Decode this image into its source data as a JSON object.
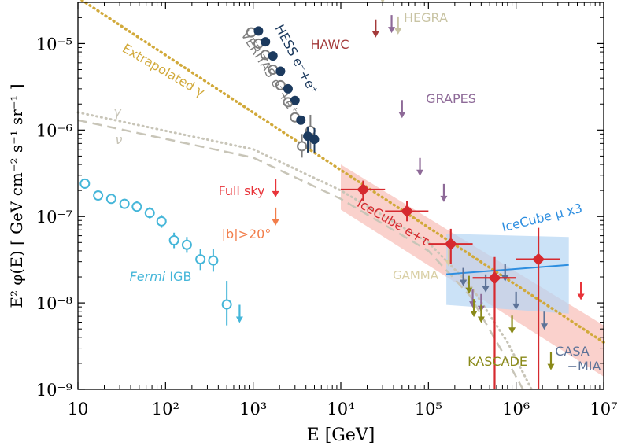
{
  "chart_data": {
    "type": "scatter",
    "xlabel": "E [GeV]",
    "ylabel": "E² φ(E)  [ GeV cm⁻² s⁻¹ sr⁻¹ ]",
    "xscale": "log",
    "yscale": "log",
    "xlim": [
      10,
      10000000
    ],
    "ylim": [
      1e-09,
      3e-05
    ],
    "x_ticks": [
      {
        "value": 10,
        "label": "10"
      },
      {
        "value": 100,
        "label": "10²"
      },
      {
        "value": 1000,
        "label": "10³"
      },
      {
        "value": 10000,
        "label": "10⁴"
      },
      {
        "value": 100000,
        "label": "10⁵"
      },
      {
        "value": 1000000,
        "label": "10⁶"
      },
      {
        "value": 10000000,
        "label": "10⁷"
      }
    ],
    "y_ticks": [
      {
        "value": 1e-09,
        "label": "10⁻⁹"
      },
      {
        "value": 1e-08,
        "label": "10⁻⁸"
      },
      {
        "value": 1e-07,
        "label": "10⁻⁷"
      },
      {
        "value": 1e-06,
        "label": "10⁻⁶"
      },
      {
        "value": 1e-05,
        "label": "10⁻⁵"
      }
    ],
    "colors": {
      "fermi": "#45b6d9",
      "hess": "#1c3a5e",
      "veritas": "#7f7f7f",
      "extrapolated": "#d1a93a",
      "gamma_nu": "#c8c5b8",
      "icecube": "#d62a2f",
      "icecube_band": "#f7b8b0",
      "icecube_mu": "#2d8ee0",
      "icecube_mu_band": "#b5d5f4",
      "hawc": "#a43a3a",
      "hegra": "#c9c4a4",
      "grapes": "#8e6a98",
      "fullsky": "#e8343a",
      "b20": "#f27d4a",
      "gamma_exp": "#d9cfa5",
      "kascade": "#8a8a19",
      "casa": "#5d7398"
    },
    "series": [
      {
        "name": "Fermi IGB",
        "points": [
          {
            "x": 12,
            "y": 2.4e-07,
            "err_lo": 2.1e-07,
            "err_hi": 2.7e-07
          },
          {
            "x": 17,
            "y": 1.75e-07,
            "err_lo": 1.55e-07,
            "err_hi": 1.98e-07
          },
          {
            "x": 24,
            "y": 1.6e-07,
            "err_lo": 1.42e-07,
            "err_hi": 1.8e-07
          },
          {
            "x": 34,
            "y": 1.4e-07,
            "err_lo": 1.23e-07,
            "err_hi": 1.6e-07
          },
          {
            "x": 47,
            "y": 1.3e-07,
            "err_lo": 1.13e-07,
            "err_hi": 1.5e-07
          },
          {
            "x": 66,
            "y": 1.1e-07,
            "err_lo": 9.5e-08,
            "err_hi": 1.28e-07
          },
          {
            "x": 90,
            "y": 8.8e-08,
            "err_lo": 7.4e-08,
            "err_hi": 1.04e-07
          },
          {
            "x": 125,
            "y": 5.3e-08,
            "err_lo": 4.3e-08,
            "err_hi": 6.5e-08
          },
          {
            "x": 175,
            "y": 4.7e-08,
            "err_lo": 3.8e-08,
            "err_hi": 5.8e-08
          },
          {
            "x": 250,
            "y": 3.2e-08,
            "err_lo": 2.4e-08,
            "err_hi": 4.2e-08
          },
          {
            "x": 350,
            "y": 3.1e-08,
            "err_lo": 2.3e-08,
            "err_hi": 4.2e-08
          },
          {
            "x": 500,
            "y": 9.6e-09,
            "err_lo": 5.5e-09,
            "err_hi": 1.8e-08
          }
        ],
        "upper_limits": [
          {
            "x": 700,
            "y": 6e-09
          }
        ]
      },
      {
        "name": "HESS e⁻+e⁺",
        "points": [
          {
            "x": 1150,
            "y": 1.4e-05
          },
          {
            "x": 1380,
            "y": 1.05e-05
          },
          {
            "x": 1680,
            "y": 7.2e-06
          },
          {
            "x": 2050,
            "y": 4.8e-06
          },
          {
            "x": 2500,
            "y": 3e-06
          },
          {
            "x": 3000,
            "y": 2.2e-06
          },
          {
            "x": 3500,
            "y": 1.3e-06
          },
          {
            "x": 4200,
            "y": 8.5e-07,
            "err_lo": 5.5e-07,
            "err_hi": 1.1e-06
          },
          {
            "x": 5000,
            "y": 7.8e-07,
            "err_lo": 5.5e-07,
            "err_hi": 1.05e-06
          }
        ]
      },
      {
        "name": "VERITAS e⁻+e⁺",
        "points": [
          {
            "x": 950,
            "y": 1.35e-05
          },
          {
            "x": 1150,
            "y": 1e-05
          },
          {
            "x": 1380,
            "y": 7.4e-06
          },
          {
            "x": 1680,
            "y": 5e-06
          },
          {
            "x": 2050,
            "y": 3.3e-06
          },
          {
            "x": 2500,
            "y": 2.1e-06
          },
          {
            "x": 3000,
            "y": 1.4e-06
          },
          {
            "x": 3600,
            "y": 6.5e-07,
            "err_lo": 4.8e-07,
            "err_hi": 9e-07
          },
          {
            "x": 4500,
            "y": 9.8e-07,
            "err_lo": 6e-07,
            "err_hi": 1.5e-06
          }
        ]
      },
      {
        "name": "IceCube e+τ",
        "points": [
          {
            "x": 18000,
            "y": 2.05e-07,
            "xerr_lo": 10000,
            "xerr_hi": 32000,
            "err_lo": 1.5e-07,
            "err_hi": 2.6e-07
          },
          {
            "x": 57000,
            "y": 1.15e-07,
            "xerr_lo": 32000,
            "xerr_hi": 100000,
            "err_lo": 8.8e-08,
            "err_hi": 1.5e-07
          },
          {
            "x": 180000,
            "y": 4.8e-08,
            "xerr_lo": 100000,
            "xerr_hi": 320000,
            "err_lo": 2.8e-08,
            "err_hi": 7.2e-08
          },
          {
            "x": 570000,
            "y": 1.95e-08,
            "xerr_lo": 320000,
            "xerr_hi": 1000000,
            "err_lo": 1e-09,
            "err_hi": 3.4e-08
          },
          {
            "x": 1800000,
            "y": 3.2e-08,
            "xerr_lo": 1000000,
            "xerr_hi": 3200000,
            "err_lo": 1e-09,
            "err_hi": 7.4e-08
          }
        ]
      },
      {
        "name": "Extrapolated γ",
        "line": [
          {
            "x": 10,
            "y": 3.4e-05
          },
          {
            "x": 10000000,
            "y": 3.5e-09
          }
        ]
      },
      {
        "name": "γ",
        "line": [
          {
            "x": 10,
            "y": 1.6e-06
          },
          {
            "x": 1000,
            "y": 6e-07
          },
          {
            "x": 10000,
            "y": 2e-07
          },
          {
            "x": 100000,
            "y": 5e-08
          },
          {
            "x": 300000,
            "y": 1.6e-08
          },
          {
            "x": 800000,
            "y": 3.5e-09
          },
          {
            "x": 1500000,
            "y": 1e-09
          }
        ]
      },
      {
        "name": "ν",
        "line": [
          {
            "x": 10,
            "y": 1.3e-06
          },
          {
            "x": 1000,
            "y": 4.8e-07
          },
          {
            "x": 10000,
            "y": 1.6e-07
          },
          {
            "x": 100000,
            "y": 4e-08
          },
          {
            "x": 300000,
            "y": 1.2e-08
          },
          {
            "x": 700000,
            "y": 2.7e-09
          },
          {
            "x": 1200000,
            "y": 1e-09
          }
        ]
      },
      {
        "name": "IceCube μ x3",
        "line": [
          {
            "x": 160000,
            "y": 2.15e-08
          },
          {
            "x": 4000000,
            "y": 2.75e-08
          }
        ]
      }
    ],
    "upper_limit_groups": [
      {
        "name": "HAWC",
        "arrows": [
          {
            "x": 25000,
            "y": 1.2e-05
          }
        ]
      },
      {
        "name": "HEGRA",
        "arrows": [
          {
            "x": 30000,
            "y": 3e-05
          },
          {
            "x": 45000,
            "y": 1.3e-05
          }
        ]
      },
      {
        "name": "GRAPES",
        "arrows": [
          {
            "x": 38000,
            "y": 1.35e-05
          },
          {
            "x": 50000,
            "y": 1.4e-06
          },
          {
            "x": 80000,
            "y": 3e-07
          },
          {
            "x": 150000,
            "y": 1.5e-07
          }
        ]
      },
      {
        "name": "Full sky",
        "arrows": [
          {
            "x": 1800,
            "y": 1.7e-07
          },
          {
            "x": 5500000,
            "y": 1.1e-08
          }
        ]
      },
      {
        "name": "|b|>20°",
        "arrows": [
          {
            "x": 1800,
            "y": 8e-08
          }
        ]
      },
      {
        "name": "GAMMA",
        "arrows": [
          {
            "x": 170000,
            "y": 2.7e-08
          }
        ]
      },
      {
        "name": "GRAPES low",
        "arrows": [
          {
            "x": 250000,
            "y": 1.6e-08
          },
          {
            "x": 320000,
            "y": 9e-09
          },
          {
            "x": 400000,
            "y": 8e-09
          }
        ]
      },
      {
        "name": "KASCADE",
        "arrows": [
          {
            "x": 290000,
            "y": 1.3e-08
          },
          {
            "x": 330000,
            "y": 7e-09
          },
          {
            "x": 400000,
            "y": 6e-09
          },
          {
            "x": 900000,
            "y": 4.5e-09
          },
          {
            "x": 2500000,
            "y": 1.7e-09
          }
        ]
      },
      {
        "name": "CASA-MIA",
        "arrows": [
          {
            "x": 250000,
            "y": 1.6e-08
          },
          {
            "x": 450000,
            "y": 1.35e-08
          },
          {
            "x": 750000,
            "y": 1.8e-08
          },
          {
            "x": 1000000,
            "y": 8.5e-09
          },
          {
            "x": 2100000,
            "y": 5e-09
          }
        ]
      }
    ],
    "bands": [
      {
        "name": "IceCube e+τ band",
        "points": [
          {
            "x": 10000,
            "y": 4e-07
          },
          {
            "x": 10000000,
            "y": 5.5e-09
          },
          {
            "x": 10000000,
            "y": 1.4e-09
          },
          {
            "x": 10000,
            "y": 1.2e-07
          }
        ]
      },
      {
        "name": "IceCube μ band",
        "points": [
          {
            "x": 160000,
            "y": 6.3e-08
          },
          {
            "x": 4000000,
            "y": 5.8e-08
          },
          {
            "x": 4000000,
            "y": 7.5e-09
          },
          {
            "x": 160000,
            "y": 9.5e-09
          }
        ]
      }
    ],
    "annotations": {
      "extrapolated": "Extrapolated γ",
      "hess": "HESS e⁻+e⁺",
      "veritas": "VERITAS e⁻+e⁺",
      "hawc": "HAWC",
      "hegra": "HEGRA",
      "grapes": "GRAPES",
      "gamma_curve": "γ",
      "nu_curve": "ν",
      "fullsky": "Full sky",
      "b20": "|b|>20°",
      "icecube": "IceCube e+τ",
      "icecube_mu": "IceCube μ x3",
      "gamma_exp": "GAMMA",
      "fermi_italic": "Fermi",
      "fermi_rest": " IGB",
      "kascade": "KASCADE",
      "casa1": "CASA",
      "casa2": "−MIA"
    }
  }
}
